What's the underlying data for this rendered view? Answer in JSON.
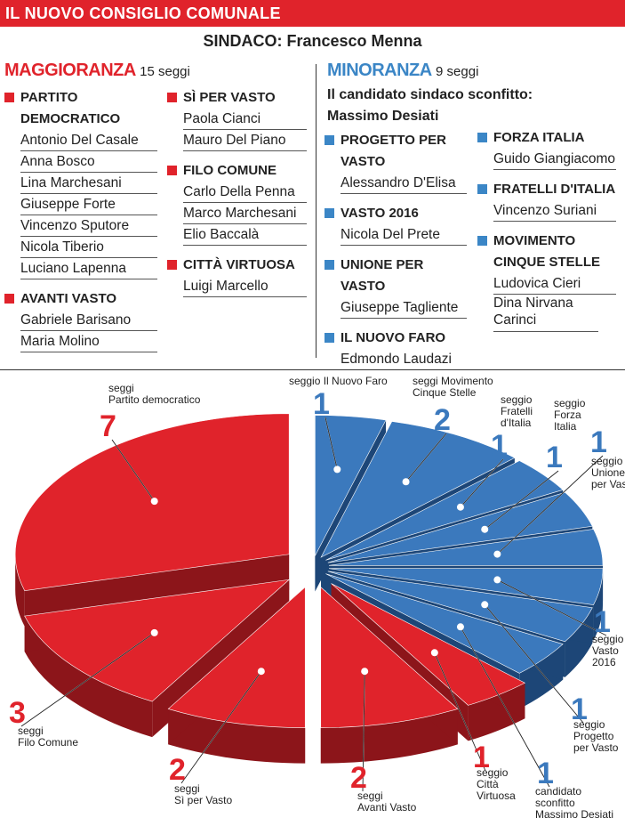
{
  "header": {
    "title": "IL NUOVO CONSIGLIO COMUNALE",
    "mayor": "SINDACO: Francesco Menna"
  },
  "majority": {
    "title": "MAGGIORANZA",
    "seats": "15 seggi",
    "col1": [
      {
        "party": "PARTITO DEMOCRATICO",
        "members": [
          "Antonio Del Casale",
          "Anna Bosco",
          "Lina Marchesani",
          "Giuseppe Forte",
          "Vincenzo Sputore",
          "Nicola Tiberio",
          "Luciano Lapenna"
        ]
      },
      {
        "party": "AVANTI VASTO",
        "members": [
          "Gabriele Barisano",
          "Maria Molino"
        ]
      }
    ],
    "col2": [
      {
        "party": "SÌ PER VASTO",
        "members": [
          "Paola Cianci",
          "Mauro Del Piano"
        ]
      },
      {
        "party": "FILO COMUNE",
        "members": [
          "Carlo Della Penna",
          "Marco Marchesani",
          "Elio Baccalà"
        ]
      },
      {
        "party": "CITTÀ VIRTUOSA",
        "members": [
          "Luigi Marcello"
        ]
      }
    ]
  },
  "minority": {
    "title": "MINORANZA",
    "seats": "9 seggi",
    "defeated_label": "Il candidato sindaco sconfitto:",
    "defeated_name": "Massimo Desiati",
    "col1": [
      {
        "party": "PROGETTO PER VASTO",
        "members": [
          "Alessandro D'Elisa"
        ]
      },
      {
        "party": "VASTO 2016",
        "members": [
          "Nicola Del Prete"
        ]
      },
      {
        "party": "UNIONE PER VASTO",
        "members": [
          "Giuseppe Tagliente"
        ]
      },
      {
        "party": "IL NUOVO FARO",
        "members": [
          "Edmondo Laudazi"
        ]
      }
    ],
    "col2": [
      {
        "party": "FORZA ITALIA",
        "members": [
          "Guido Giangiacomo"
        ]
      },
      {
        "party": "FRATELLI D'ITALIA",
        "members": [
          "Vincenzo Suriani"
        ]
      },
      {
        "party": "MOVIMENTO CINQUE STELLE",
        "members": [
          "Ludovica Cieri",
          "Dina Nirvana Carinci"
        ]
      }
    ]
  },
  "colors": {
    "red": "#e0232b",
    "red_dark": "#8c151a",
    "blue": "#3b79bd",
    "blue_dark": "#1d4677",
    "accent_blue_text": "#3b86c6"
  },
  "chart_data": {
    "type": "pie",
    "title": "",
    "total": 24,
    "slices": [
      {
        "value": 1,
        "group": "minority",
        "label_num": "1",
        "label": "seggio Il Nuovo Faro"
      },
      {
        "value": 2,
        "group": "minority",
        "label_num": "2",
        "label": "seggi Movimento Cinque Stelle"
      },
      {
        "value": 1,
        "group": "minority",
        "label_num": "1",
        "label": "seggio Fratelli d'Italia"
      },
      {
        "value": 1,
        "group": "minority",
        "label_num": "1",
        "label": "seggio Forza Italia"
      },
      {
        "value": 1,
        "group": "minority",
        "label_num": "1",
        "label": "seggio Unione per Vasto"
      },
      {
        "value": 1,
        "group": "minority",
        "label_num": "1",
        "label": "seggio Vasto 2016"
      },
      {
        "value": 1,
        "group": "minority",
        "label_num": "1",
        "label": "seggio Progetto per Vasto"
      },
      {
        "value": 1,
        "group": "minority",
        "label_num": "1",
        "label": "candidato sconfitto Massimo Desiati"
      },
      {
        "value": 1,
        "group": "majority",
        "label_num": "1",
        "label": "seggio Città Virtuosa"
      },
      {
        "value": 2,
        "group": "majority",
        "label_num": "2",
        "label": "seggi Avanti Vasto"
      },
      {
        "value": 2,
        "group": "majority",
        "label_num": "2",
        "label": "seggi Sì per Vasto"
      },
      {
        "value": 3,
        "group": "majority",
        "label_num": "3",
        "label": "seggi Filo Comune"
      },
      {
        "value": 7,
        "group": "majority",
        "label_num": "7",
        "label": "seggi Partito democratico"
      }
    ]
  }
}
